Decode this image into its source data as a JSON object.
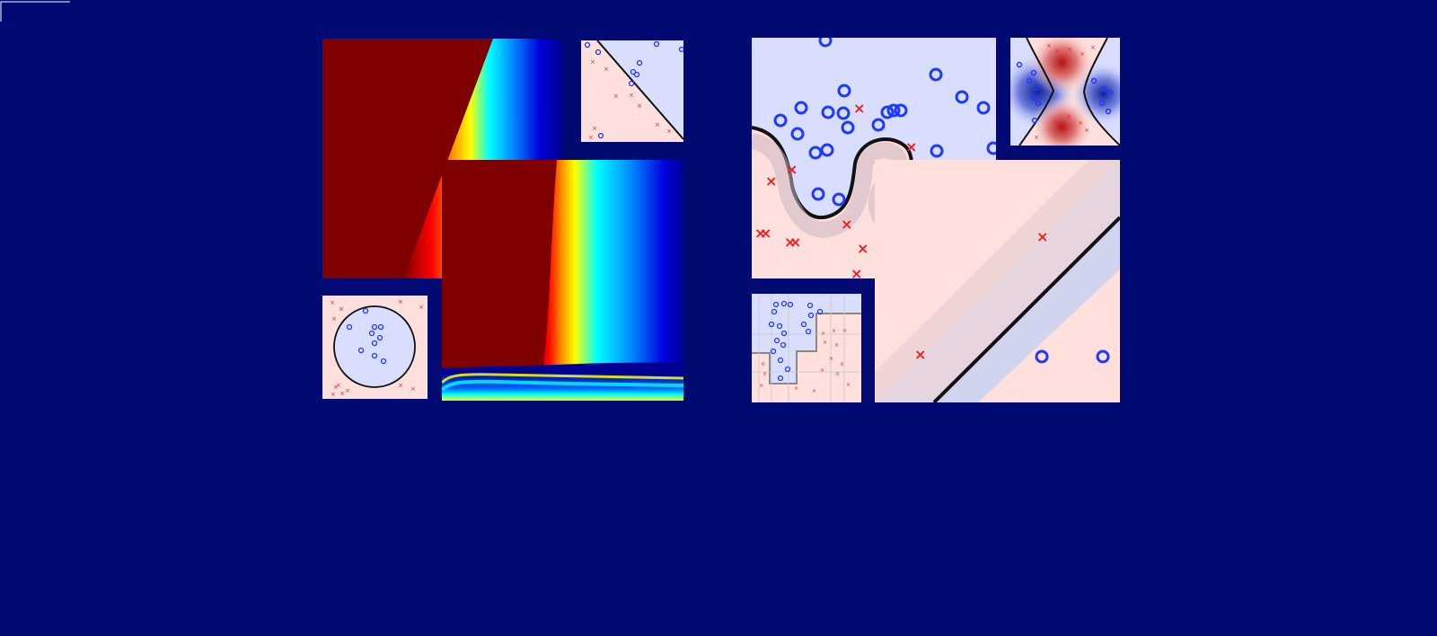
{
  "page": {
    "background_color": "#000a72",
    "accent_colors": {
      "positive_class": "#1f39ff",
      "negative_class": "#f21d1d",
      "positive_region": "#d9deff",
      "negative_region": "#ffe0dc",
      "decision_boundary": "#111111"
    }
  },
  "left_collage": {
    "panels": [
      {
        "kind": "heatmap",
        "icon": "heatmap-gradient-icon"
      },
      {
        "kind": "linear-classifier",
        "icon": "diagonal-boundary-icon"
      },
      {
        "kind": "circular-classifier",
        "icon": "circle-boundary-icon"
      },
      {
        "kind": "heatmap",
        "icon": "heatmap-curve-icon"
      }
    ]
  },
  "right_collage": {
    "panels": [
      {
        "kind": "nonlinear-classifier",
        "icon": "wavy-boundary-icon"
      },
      {
        "kind": "gaussian-classifier",
        "icon": "hyperbolic-boundary-icon"
      },
      {
        "kind": "tree-classifier",
        "icon": "tree-boundary-icon"
      },
      {
        "kind": "margin-classifier",
        "icon": "margin-band-icon"
      }
    ]
  }
}
